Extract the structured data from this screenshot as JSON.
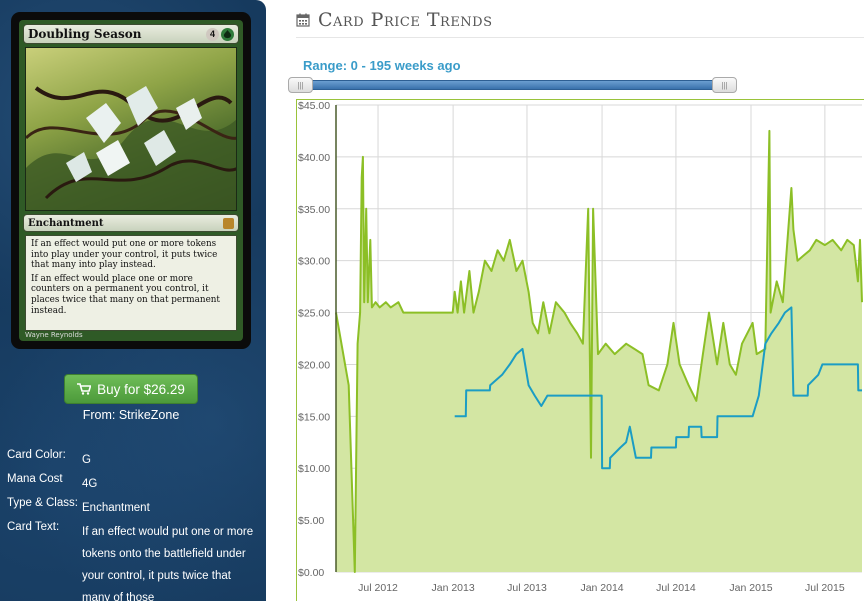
{
  "card": {
    "name": "Doubling Season",
    "mana_generic": "4",
    "mana_color": "G",
    "type_line": "Enchantment",
    "rules_p1": "If an effect would put one or more tokens into play under your control, it puts twice that many into play instead.",
    "rules_p2": "If an effect would place one or more counters on a permanent you control, it places twice that many on that permanent instead.",
    "artist": "Wayne Reynolds"
  },
  "buy": {
    "label": "Buy for $26.29",
    "from": "From: StrikeZone"
  },
  "attributes": [
    {
      "label": "Card Color:",
      "value": "G"
    },
    {
      "label": "Mana Cost",
      "value": "4G"
    },
    {
      "label": "Type & Class:",
      "value": "Enchantment"
    },
    {
      "label": "Card Text:",
      "value": "If an effect would put one or more tokens onto the battlefield under your control, it puts twice that many of those"
    }
  ],
  "header": {
    "title": "Card Price Trends",
    "range_label": "Range: 0 - 195 weeks ago"
  },
  "slider": {
    "min_weeks": 0,
    "max_weeks": 195,
    "left_value": 195,
    "right_value": 0
  },
  "colors": {
    "green_series": "#8cbf26",
    "blue_series": "#1b9dc4",
    "fill": "#d3e6a3",
    "plot_bg": "#ffffff",
    "grid": "#d8d8d8"
  },
  "chart_data": {
    "type": "line",
    "ylim": [
      0,
      45
    ],
    "grid": true,
    "y_ticks": [
      "$0.00",
      "$5.00",
      "$10.00",
      "$15.00",
      "$20.00",
      "$25.00",
      "$30.00",
      "$35.00",
      "$40.00",
      "$45.00"
    ],
    "x_ticks": [
      "Jul 2012",
      "Jan 2013",
      "Jul 2013",
      "Jan 2014",
      "Jul 2014",
      "Jan 2015",
      "Jul 2015"
    ],
    "x_tick_dates": [
      "2012-07-01",
      "2013-01-01",
      "2013-07-01",
      "2014-01-01",
      "2014-07-01",
      "2015-01-01",
      "2015-07-01"
    ],
    "x_range": [
      "2012-03-20",
      "2015-09-30"
    ],
    "series": [
      {
        "color": "#8cbf26",
        "filled": true,
        "points": [
          [
            "2012-03-20",
            25.0
          ],
          [
            "2012-04-20",
            18.0
          ],
          [
            "2012-05-05",
            0.0
          ],
          [
            "2012-05-12",
            22.0
          ],
          [
            "2012-05-18",
            25.0
          ],
          [
            "2012-05-22",
            38.0
          ],
          [
            "2012-05-25",
            40.0
          ],
          [
            "2012-05-28",
            26.0
          ],
          [
            "2012-06-02",
            35.0
          ],
          [
            "2012-06-06",
            26.0
          ],
          [
            "2012-06-12",
            32.0
          ],
          [
            "2012-06-16",
            25.5
          ],
          [
            "2012-06-25",
            26.0
          ],
          [
            "2012-07-05",
            25.5
          ],
          [
            "2012-07-20",
            26.0
          ],
          [
            "2012-08-01",
            25.5
          ],
          [
            "2012-08-20",
            26.0
          ],
          [
            "2012-09-01",
            25.0
          ],
          [
            "2012-12-31",
            25.0
          ],
          [
            "2013-01-05",
            27.0
          ],
          [
            "2013-01-12",
            25.0
          ],
          [
            "2013-01-20",
            28.0
          ],
          [
            "2013-01-28",
            25.0
          ],
          [
            "2013-02-10",
            29.0
          ],
          [
            "2013-02-20",
            25.0
          ],
          [
            "2013-03-05",
            27.0
          ],
          [
            "2013-03-20",
            30.0
          ],
          [
            "2013-04-05",
            29.0
          ],
          [
            "2013-04-20",
            31.0
          ],
          [
            "2013-05-05",
            30.0
          ],
          [
            "2013-05-20",
            32.0
          ],
          [
            "2013-06-05",
            29.0
          ],
          [
            "2013-06-20",
            30.0
          ],
          [
            "2013-07-05",
            27.0
          ],
          [
            "2013-07-15",
            24.0
          ],
          [
            "2013-07-28",
            23.0
          ],
          [
            "2013-08-10",
            26.0
          ],
          [
            "2013-08-25",
            23.0
          ],
          [
            "2013-09-10",
            26.0
          ],
          [
            "2013-10-01",
            25.0
          ],
          [
            "2013-10-15",
            24.0
          ],
          [
            "2013-11-01",
            23.0
          ],
          [
            "2013-11-15",
            22.0
          ],
          [
            "2013-11-28",
            35.0
          ],
          [
            "2013-12-05",
            11.0
          ],
          [
            "2013-12-10",
            35.0
          ],
          [
            "2013-12-22",
            21.0
          ],
          [
            "2014-01-10",
            22.0
          ],
          [
            "2014-02-01",
            21.0
          ],
          [
            "2014-03-01",
            22.0
          ],
          [
            "2014-04-10",
            21.0
          ],
          [
            "2014-04-25",
            18.0
          ],
          [
            "2014-05-20",
            17.5
          ],
          [
            "2014-06-10",
            20.0
          ],
          [
            "2014-06-25",
            24.0
          ],
          [
            "2014-07-10",
            20.0
          ],
          [
            "2014-08-01",
            18.0
          ],
          [
            "2014-08-20",
            16.5
          ],
          [
            "2014-09-05",
            21.0
          ],
          [
            "2014-09-20",
            25.0
          ],
          [
            "2014-10-10",
            20.0
          ],
          [
            "2014-10-25",
            24.0
          ],
          [
            "2014-11-10",
            20.0
          ],
          [
            "2014-11-25",
            19.0
          ],
          [
            "2014-12-10",
            22.0
          ],
          [
            "2015-01-05",
            24.0
          ],
          [
            "2015-01-15",
            21.0
          ],
          [
            "2015-02-05",
            21.5
          ],
          [
            "2015-02-15",
            42.5
          ],
          [
            "2015-02-18",
            25.0
          ],
          [
            "2015-03-05",
            28.0
          ],
          [
            "2015-03-20",
            26.0
          ],
          [
            "2015-04-10",
            37.0
          ],
          [
            "2015-04-15",
            33.0
          ],
          [
            "2015-04-25",
            30.0
          ],
          [
            "2015-05-10",
            30.5
          ],
          [
            "2015-05-25",
            31.0
          ],
          [
            "2015-06-10",
            32.0
          ],
          [
            "2015-07-01",
            31.5
          ],
          [
            "2015-07-20",
            32.0
          ],
          [
            "2015-08-10",
            31.0
          ],
          [
            "2015-08-25",
            32.0
          ],
          [
            "2015-09-10",
            31.5
          ],
          [
            "2015-09-20",
            28.0
          ],
          [
            "2015-09-25",
            32.0
          ],
          [
            "2015-09-30",
            26.0
          ]
        ]
      },
      {
        "color": "#1b9dc4",
        "filled": false,
        "points": [
          [
            "2013-01-05",
            15.0
          ],
          [
            "2013-02-01",
            15.0
          ],
          [
            "2013-02-02",
            17.5
          ],
          [
            "2013-04-01",
            17.5
          ],
          [
            "2013-04-02",
            18.0
          ],
          [
            "2013-05-01",
            19.0
          ],
          [
            "2013-05-20",
            20.0
          ],
          [
            "2013-06-05",
            21.0
          ],
          [
            "2013-06-20",
            21.5
          ],
          [
            "2013-07-05",
            18.0
          ],
          [
            "2013-07-20",
            17.0
          ],
          [
            "2013-08-05",
            16.0
          ],
          [
            "2013-08-20",
            17.0
          ],
          [
            "2013-12-31",
            17.0
          ],
          [
            "2014-01-01",
            10.0
          ],
          [
            "2014-01-20",
            10.0
          ],
          [
            "2014-01-21",
            11.0
          ],
          [
            "2014-02-15",
            12.0
          ],
          [
            "2014-03-01",
            12.5
          ],
          [
            "2014-03-10",
            14.0
          ],
          [
            "2014-03-25",
            11.0
          ],
          [
            "2014-05-01",
            11.0
          ],
          [
            "2014-05-02",
            12.0
          ],
          [
            "2014-07-01",
            12.0
          ],
          [
            "2014-07-02",
            13.0
          ],
          [
            "2014-08-01",
            13.0
          ],
          [
            "2014-08-02",
            14.0
          ],
          [
            "2014-09-01",
            14.0
          ],
          [
            "2014-09-02",
            13.0
          ],
          [
            "2014-10-10",
            13.0
          ],
          [
            "2014-10-11",
            15.0
          ],
          [
            "2015-01-05",
            15.0
          ],
          [
            "2015-01-20",
            17.0
          ],
          [
            "2015-02-05",
            22.0
          ],
          [
            "2015-02-20",
            23.0
          ],
          [
            "2015-03-10",
            24.0
          ],
          [
            "2015-03-25",
            25.0
          ],
          [
            "2015-04-10",
            25.5
          ],
          [
            "2015-04-15",
            17.0
          ],
          [
            "2015-05-20",
            17.0
          ],
          [
            "2015-05-21",
            18.0
          ],
          [
            "2015-06-15",
            19.0
          ],
          [
            "2015-06-25",
            20.0
          ],
          [
            "2015-09-20",
            20.0
          ],
          [
            "2015-09-21",
            17.5
          ],
          [
            "2015-09-30",
            17.5
          ]
        ]
      }
    ]
  }
}
